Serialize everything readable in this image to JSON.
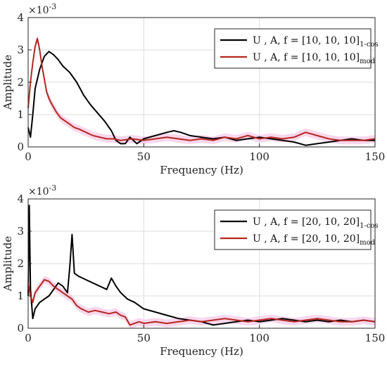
{
  "chart_data": [
    {
      "type": "line",
      "xlabel": "Frequency (Hz)",
      "ylabel": "Amplitude",
      "xlim": [
        0,
        150
      ],
      "ylim": [
        0,
        4
      ],
      "y_exponent": "×10",
      "y_exponent_power": "-3",
      "xticks": [
        "0",
        "50",
        "100",
        "150"
      ],
      "yticks": [
        "0",
        "1",
        "2",
        "3",
        "4"
      ],
      "grid": true,
      "legend_position": "top-right",
      "colors": {
        "black": "#000000",
        "red": "#b5261e",
        "pink_band": "#f2a6d8"
      },
      "series": [
        {
          "name": "U , A, f = [10, 10, 10]",
          "subscript": "1-cos",
          "color": "#000000",
          "x": [
            0,
            1,
            2,
            3,
            5,
            7,
            9,
            11,
            13,
            15,
            18,
            21,
            24,
            27,
            30,
            33,
            36,
            38,
            40,
            42,
            44,
            47,
            50,
            55,
            60,
            63,
            66,
            70,
            75,
            80,
            85,
            90,
            95,
            100,
            105,
            110,
            115,
            120,
            125,
            130,
            135,
            140,
            145,
            150
          ],
          "values": [
            0.6,
            0.3,
            1.0,
            1.8,
            2.4,
            2.8,
            2.95,
            2.85,
            2.7,
            2.5,
            2.3,
            2.0,
            1.6,
            1.3,
            1.05,
            0.8,
            0.5,
            0.2,
            0.1,
            0.1,
            0.3,
            0.1,
            0.25,
            0.35,
            0.45,
            0.5,
            0.45,
            0.35,
            0.3,
            0.25,
            0.3,
            0.2,
            0.25,
            0.3,
            0.25,
            0.2,
            0.15,
            0.05,
            0.1,
            0.15,
            0.2,
            0.25,
            0.2,
            0.2
          ]
        },
        {
          "name": "U , A, f = [10, 10, 10]",
          "subscript": "mod",
          "color": "#b5261e",
          "x": [
            0,
            1,
            2,
            3,
            4,
            5,
            6,
            7,
            8,
            9,
            10,
            12,
            14,
            16,
            18,
            20,
            22,
            25,
            28,
            31,
            34,
            37,
            40,
            45,
            50,
            55,
            60,
            65,
            70,
            75,
            80,
            85,
            90,
            95,
            100,
            105,
            110,
            115,
            120,
            125,
            130,
            135,
            140,
            145,
            150
          ],
          "values": [
            1.2,
            2.0,
            2.6,
            3.1,
            3.35,
            3.0,
            2.5,
            2.1,
            1.7,
            1.5,
            1.35,
            1.1,
            0.9,
            0.8,
            0.7,
            0.6,
            0.55,
            0.45,
            0.35,
            0.3,
            0.25,
            0.25,
            0.2,
            0.25,
            0.2,
            0.25,
            0.3,
            0.25,
            0.2,
            0.25,
            0.2,
            0.3,
            0.25,
            0.35,
            0.25,
            0.3,
            0.25,
            0.3,
            0.45,
            0.35,
            0.25,
            0.2,
            0.2,
            0.2,
            0.25
          ]
        }
      ]
    },
    {
      "type": "line",
      "xlabel": "Frequency (Hz)",
      "ylabel": "Amplitude",
      "xlim": [
        0,
        150
      ],
      "ylim": [
        0,
        4
      ],
      "y_exponent": "×10",
      "y_exponent_power": "-3",
      "xticks": [
        "0",
        "50",
        "100",
        "150"
      ],
      "yticks": [
        "0",
        "1",
        "2",
        "3",
        "4"
      ],
      "grid": true,
      "legend_position": "top-right",
      "colors": {
        "black": "#000000",
        "red": "#b5261e",
        "pink_band": "#f2a6d8"
      },
      "series": [
        {
          "name": "U , A, f = [20, 10, 20]",
          "subscript": "1-cos",
          "color": "#000000",
          "x": [
            0,
            0.5,
            1,
            2,
            3,
            5,
            7,
            9,
            11,
            13,
            15,
            17,
            18,
            19,
            20,
            22,
            25,
            28,
            31,
            34,
            36,
            38,
            40,
            43,
            46,
            50,
            55,
            60,
            65,
            70,
            75,
            80,
            85,
            90,
            95,
            100,
            105,
            110,
            115,
            120,
            125,
            130,
            135,
            140,
            145,
            150
          ],
          "values": [
            1.0,
            3.8,
            1.2,
            0.3,
            0.6,
            0.8,
            0.9,
            1.0,
            1.2,
            1.4,
            1.3,
            1.1,
            1.9,
            2.9,
            1.7,
            1.6,
            1.5,
            1.4,
            1.3,
            1.2,
            1.55,
            1.3,
            1.1,
            0.9,
            0.8,
            0.6,
            0.5,
            0.4,
            0.3,
            0.25,
            0.2,
            0.1,
            0.15,
            0.2,
            0.25,
            0.2,
            0.25,
            0.3,
            0.25,
            0.2,
            0.25,
            0.2,
            0.25,
            0.2,
            0.25,
            0.2
          ]
        },
        {
          "name": "U , A, f = [20, 10, 20]",
          "subscript": "mod",
          "color": "#b5261e",
          "x": [
            0,
            1,
            2,
            3,
            5,
            7,
            9,
            11,
            13,
            15,
            17,
            19,
            21,
            23,
            26,
            29,
            32,
            35,
            38,
            40,
            42,
            44,
            46,
            48,
            50,
            55,
            60,
            65,
            70,
            75,
            80,
            85,
            90,
            95,
            100,
            105,
            110,
            115,
            120,
            125,
            130,
            135,
            140,
            145,
            150
          ],
          "values": [
            1.4,
            1.0,
            0.8,
            1.1,
            1.3,
            1.5,
            1.45,
            1.3,
            1.2,
            1.1,
            1.0,
            0.9,
            0.7,
            0.6,
            0.5,
            0.55,
            0.5,
            0.45,
            0.5,
            0.4,
            0.35,
            0.1,
            0.15,
            0.2,
            0.15,
            0.2,
            0.15,
            0.2,
            0.25,
            0.2,
            0.25,
            0.3,
            0.25,
            0.2,
            0.25,
            0.3,
            0.25,
            0.2,
            0.25,
            0.3,
            0.25,
            0.2,
            0.2,
            0.25,
            0.2
          ]
        }
      ]
    }
  ]
}
